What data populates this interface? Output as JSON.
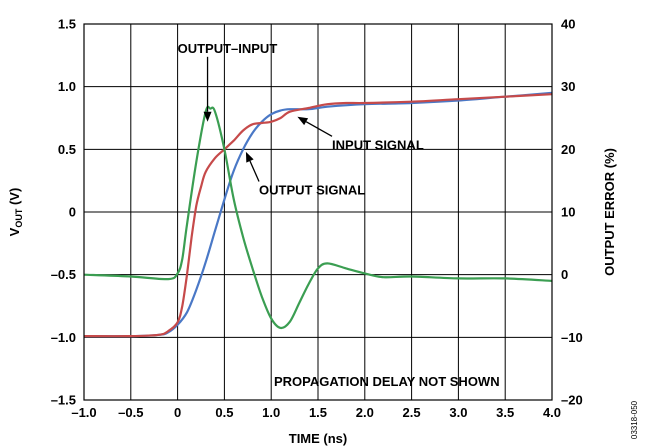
{
  "chart_data": {
    "type": "line",
    "xlabel": "TIME (ns)",
    "ylabel_main": "V",
    "ylabel_sub": "OUT",
    "ylabel_unit": " (V)",
    "y2label": "OUTPUT ERROR (%)",
    "xlim": [
      -1.0,
      4.0
    ],
    "ylim": [
      -1.5,
      1.5
    ],
    "y2lim": [
      -20,
      40
    ],
    "grid": true,
    "x_ticks": [
      -1.0,
      -0.5,
      0,
      0.5,
      1.0,
      1.5,
      2.0,
      2.5,
      3.0,
      3.5,
      4.0
    ],
    "x_tick_labels": [
      "–1.0",
      "–0.5",
      "0",
      "0.5",
      "1.0",
      "1.5",
      "2.0",
      "2.5",
      "3.0",
      "3.5",
      "4.0"
    ],
    "y_ticks": [
      -1.5,
      -1.0,
      -0.5,
      0,
      0.5,
      1.0,
      1.5
    ],
    "y_tick_labels": [
      "–1.5",
      "–1.0",
      "–0.5",
      "0",
      "0.5",
      "1.0",
      "1.5"
    ],
    "y2_ticks": [
      -20,
      -10,
      0,
      10,
      20,
      30,
      40
    ],
    "y2_tick_labels": [
      "–20",
      "–10",
      "0",
      "10",
      "20",
      "30",
      "40"
    ],
    "series": [
      {
        "name": "INPUT SIGNAL",
        "color": "#4a78c6",
        "axis": "left",
        "x": [
          -1.0,
          -0.5,
          -0.2,
          -0.1,
          0.0,
          0.1,
          0.2,
          0.3,
          0.4,
          0.5,
          0.6,
          0.7,
          0.8,
          0.9,
          1.0,
          1.1,
          1.2,
          1.4,
          1.6,
          2.0,
          2.5,
          3.0,
          3.5,
          4.0
        ],
        "y": [
          -0.99,
          -0.99,
          -0.98,
          -0.96,
          -0.9,
          -0.8,
          -0.62,
          -0.4,
          -0.15,
          0.1,
          0.33,
          0.5,
          0.63,
          0.72,
          0.78,
          0.81,
          0.82,
          0.82,
          0.84,
          0.86,
          0.87,
          0.89,
          0.92,
          0.95
        ]
      },
      {
        "name": "OUTPUT SIGNAL",
        "color": "#c64a4a",
        "axis": "left",
        "x": [
          -1.0,
          -0.5,
          -0.2,
          -0.1,
          0.0,
          0.05,
          0.1,
          0.15,
          0.2,
          0.25,
          0.3,
          0.4,
          0.5,
          0.6,
          0.7,
          0.8,
          0.9,
          1.0,
          1.1,
          1.2,
          1.4,
          1.6,
          1.8,
          2.0,
          2.5,
          3.0,
          3.5,
          4.0
        ],
        "y": [
          -0.99,
          -0.99,
          -0.98,
          -0.95,
          -0.88,
          -0.75,
          -0.5,
          -0.2,
          0.05,
          0.2,
          0.32,
          0.43,
          0.5,
          0.57,
          0.65,
          0.7,
          0.71,
          0.72,
          0.75,
          0.8,
          0.83,
          0.86,
          0.87,
          0.87,
          0.88,
          0.9,
          0.92,
          0.94
        ]
      },
      {
        "name": "OUTPUT–INPUT",
        "color": "#3b9e52",
        "axis": "right",
        "x": [
          -1.0,
          -0.5,
          -0.1,
          0.0,
          0.05,
          0.1,
          0.2,
          0.3,
          0.35,
          0.4,
          0.5,
          0.6,
          0.7,
          0.8,
          0.9,
          1.0,
          1.1,
          1.2,
          1.3,
          1.4,
          1.5,
          1.6,
          1.8,
          2.0,
          2.2,
          2.5,
          3.0,
          3.5,
          4.0
        ],
        "y": [
          0.0,
          -0.3,
          -0.7,
          0.2,
          2.5,
          8,
          18,
          26,
          26.5,
          26,
          20,
          12,
          6,
          1,
          -3.5,
          -7,
          -8.5,
          -7.5,
          -4.5,
          -1.5,
          1.0,
          1.8,
          1.0,
          0.2,
          -0.4,
          -0.3,
          -0.6,
          -0.6,
          -1.0
        ]
      }
    ],
    "annotations": [
      {
        "text": "OUTPUT–INPUT",
        "x": 0.0,
        "y": 1.27,
        "arrow_to": [
          0.32,
          0.72
        ]
      },
      {
        "text": "INPUT SIGNAL",
        "x": 1.65,
        "y": 0.5,
        "arrow_to": [
          1.28,
          0.76
        ]
      },
      {
        "text": "OUTPUT SIGNAL",
        "x": 0.87,
        "y": 0.14,
        "arrow_to": [
          0.73,
          0.48
        ]
      },
      {
        "text": "PROPAGATION DELAY NOT SHOWN",
        "x": 1.03,
        "y": -1.39
      }
    ],
    "figure_id": "03318-050"
  }
}
